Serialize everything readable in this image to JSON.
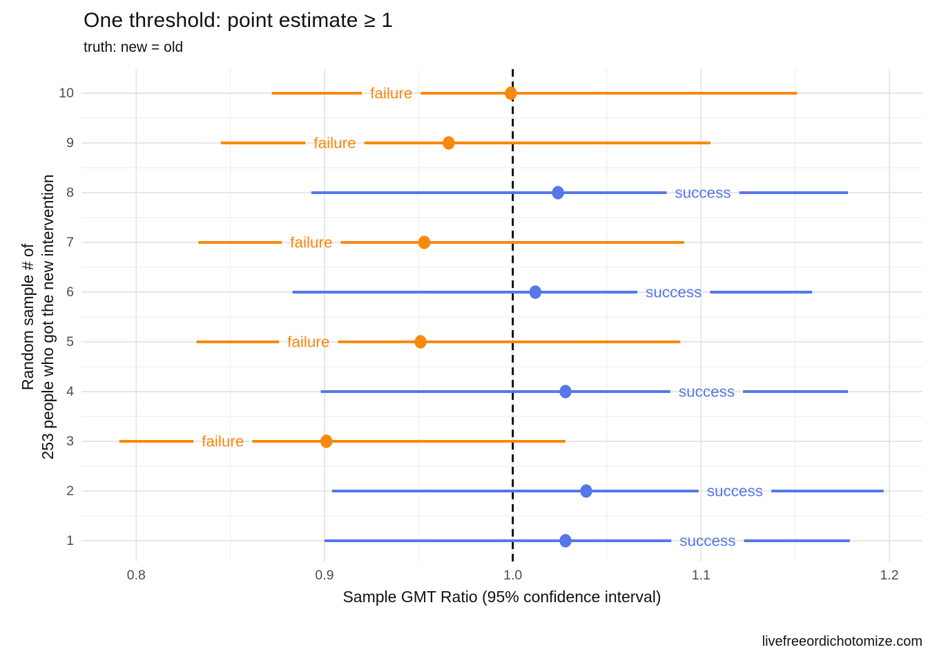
{
  "header": {
    "title": "One threshold: point estimate ≥ 1",
    "subtitle": "truth: new = old"
  },
  "caption": "livefreeordichotomize.com",
  "chart_data": {
    "type": "scatter",
    "subtype": "horizontal-dot-with-ci (forest plot)",
    "title": "One threshold: point estimate ≥ 1",
    "subtitle": "truth: new = old",
    "xlabel": "Sample GMT Ratio (95% confidence interval)",
    "ylabel_lines": [
      "Random sample # of",
      "253 people who got the new intervention"
    ],
    "xlim": [
      0.77,
      1.22
    ],
    "x_major_ticks": [
      0.8,
      0.9,
      1.0,
      1.1,
      1.2
    ],
    "x_tick_labels": [
      "0.8",
      "0.9",
      "1.0",
      "1.1",
      "1.2"
    ],
    "x_minor_ticks": [
      0.85,
      0.95,
      1.05,
      1.15
    ],
    "y_ticks": [
      1,
      2,
      3,
      4,
      5,
      6,
      7,
      8,
      9,
      10
    ],
    "y_tick_labels": [
      "1",
      "2",
      "3",
      "4",
      "5",
      "6",
      "7",
      "8",
      "9",
      "10"
    ],
    "reference_line_x": 1.0,
    "grid": true,
    "legend_position": "none",
    "colors": {
      "success": "#5577E8",
      "failure": "#F8890C",
      "reference_line": "#000000",
      "grid_major": "#E3E3E3",
      "grid_minor": "#EFEFEF",
      "axis_text": "#4D4D4D"
    },
    "series": [
      {
        "sample": 10,
        "estimate": 0.999,
        "ci_low": 0.872,
        "ci_high": 1.151,
        "outcome": "failure",
        "label": "failure"
      },
      {
        "sample": 9,
        "estimate": 0.966,
        "ci_low": 0.845,
        "ci_high": 1.105,
        "outcome": "failure",
        "label": "failure"
      },
      {
        "sample": 8,
        "estimate": 1.024,
        "ci_low": 0.893,
        "ci_high": 1.178,
        "outcome": "success",
        "label": "success"
      },
      {
        "sample": 7,
        "estimate": 0.953,
        "ci_low": 0.833,
        "ci_high": 1.091,
        "outcome": "failure",
        "label": "failure"
      },
      {
        "sample": 6,
        "estimate": 1.012,
        "ci_low": 0.883,
        "ci_high": 1.159,
        "outcome": "success",
        "label": "success"
      },
      {
        "sample": 5,
        "estimate": 0.951,
        "ci_low": 0.832,
        "ci_high": 1.089,
        "outcome": "failure",
        "label": "failure"
      },
      {
        "sample": 4,
        "estimate": 1.028,
        "ci_low": 0.898,
        "ci_high": 1.178,
        "outcome": "success",
        "label": "success"
      },
      {
        "sample": 3,
        "estimate": 0.901,
        "ci_low": 0.791,
        "ci_high": 1.028,
        "outcome": "failure",
        "label": "failure"
      },
      {
        "sample": 2,
        "estimate": 1.039,
        "ci_low": 0.904,
        "ci_high": 1.197,
        "outcome": "success",
        "label": "success"
      },
      {
        "sample": 1,
        "estimate": 1.028,
        "ci_low": 0.9,
        "ci_high": 1.179,
        "outcome": "success",
        "label": "success"
      }
    ]
  }
}
